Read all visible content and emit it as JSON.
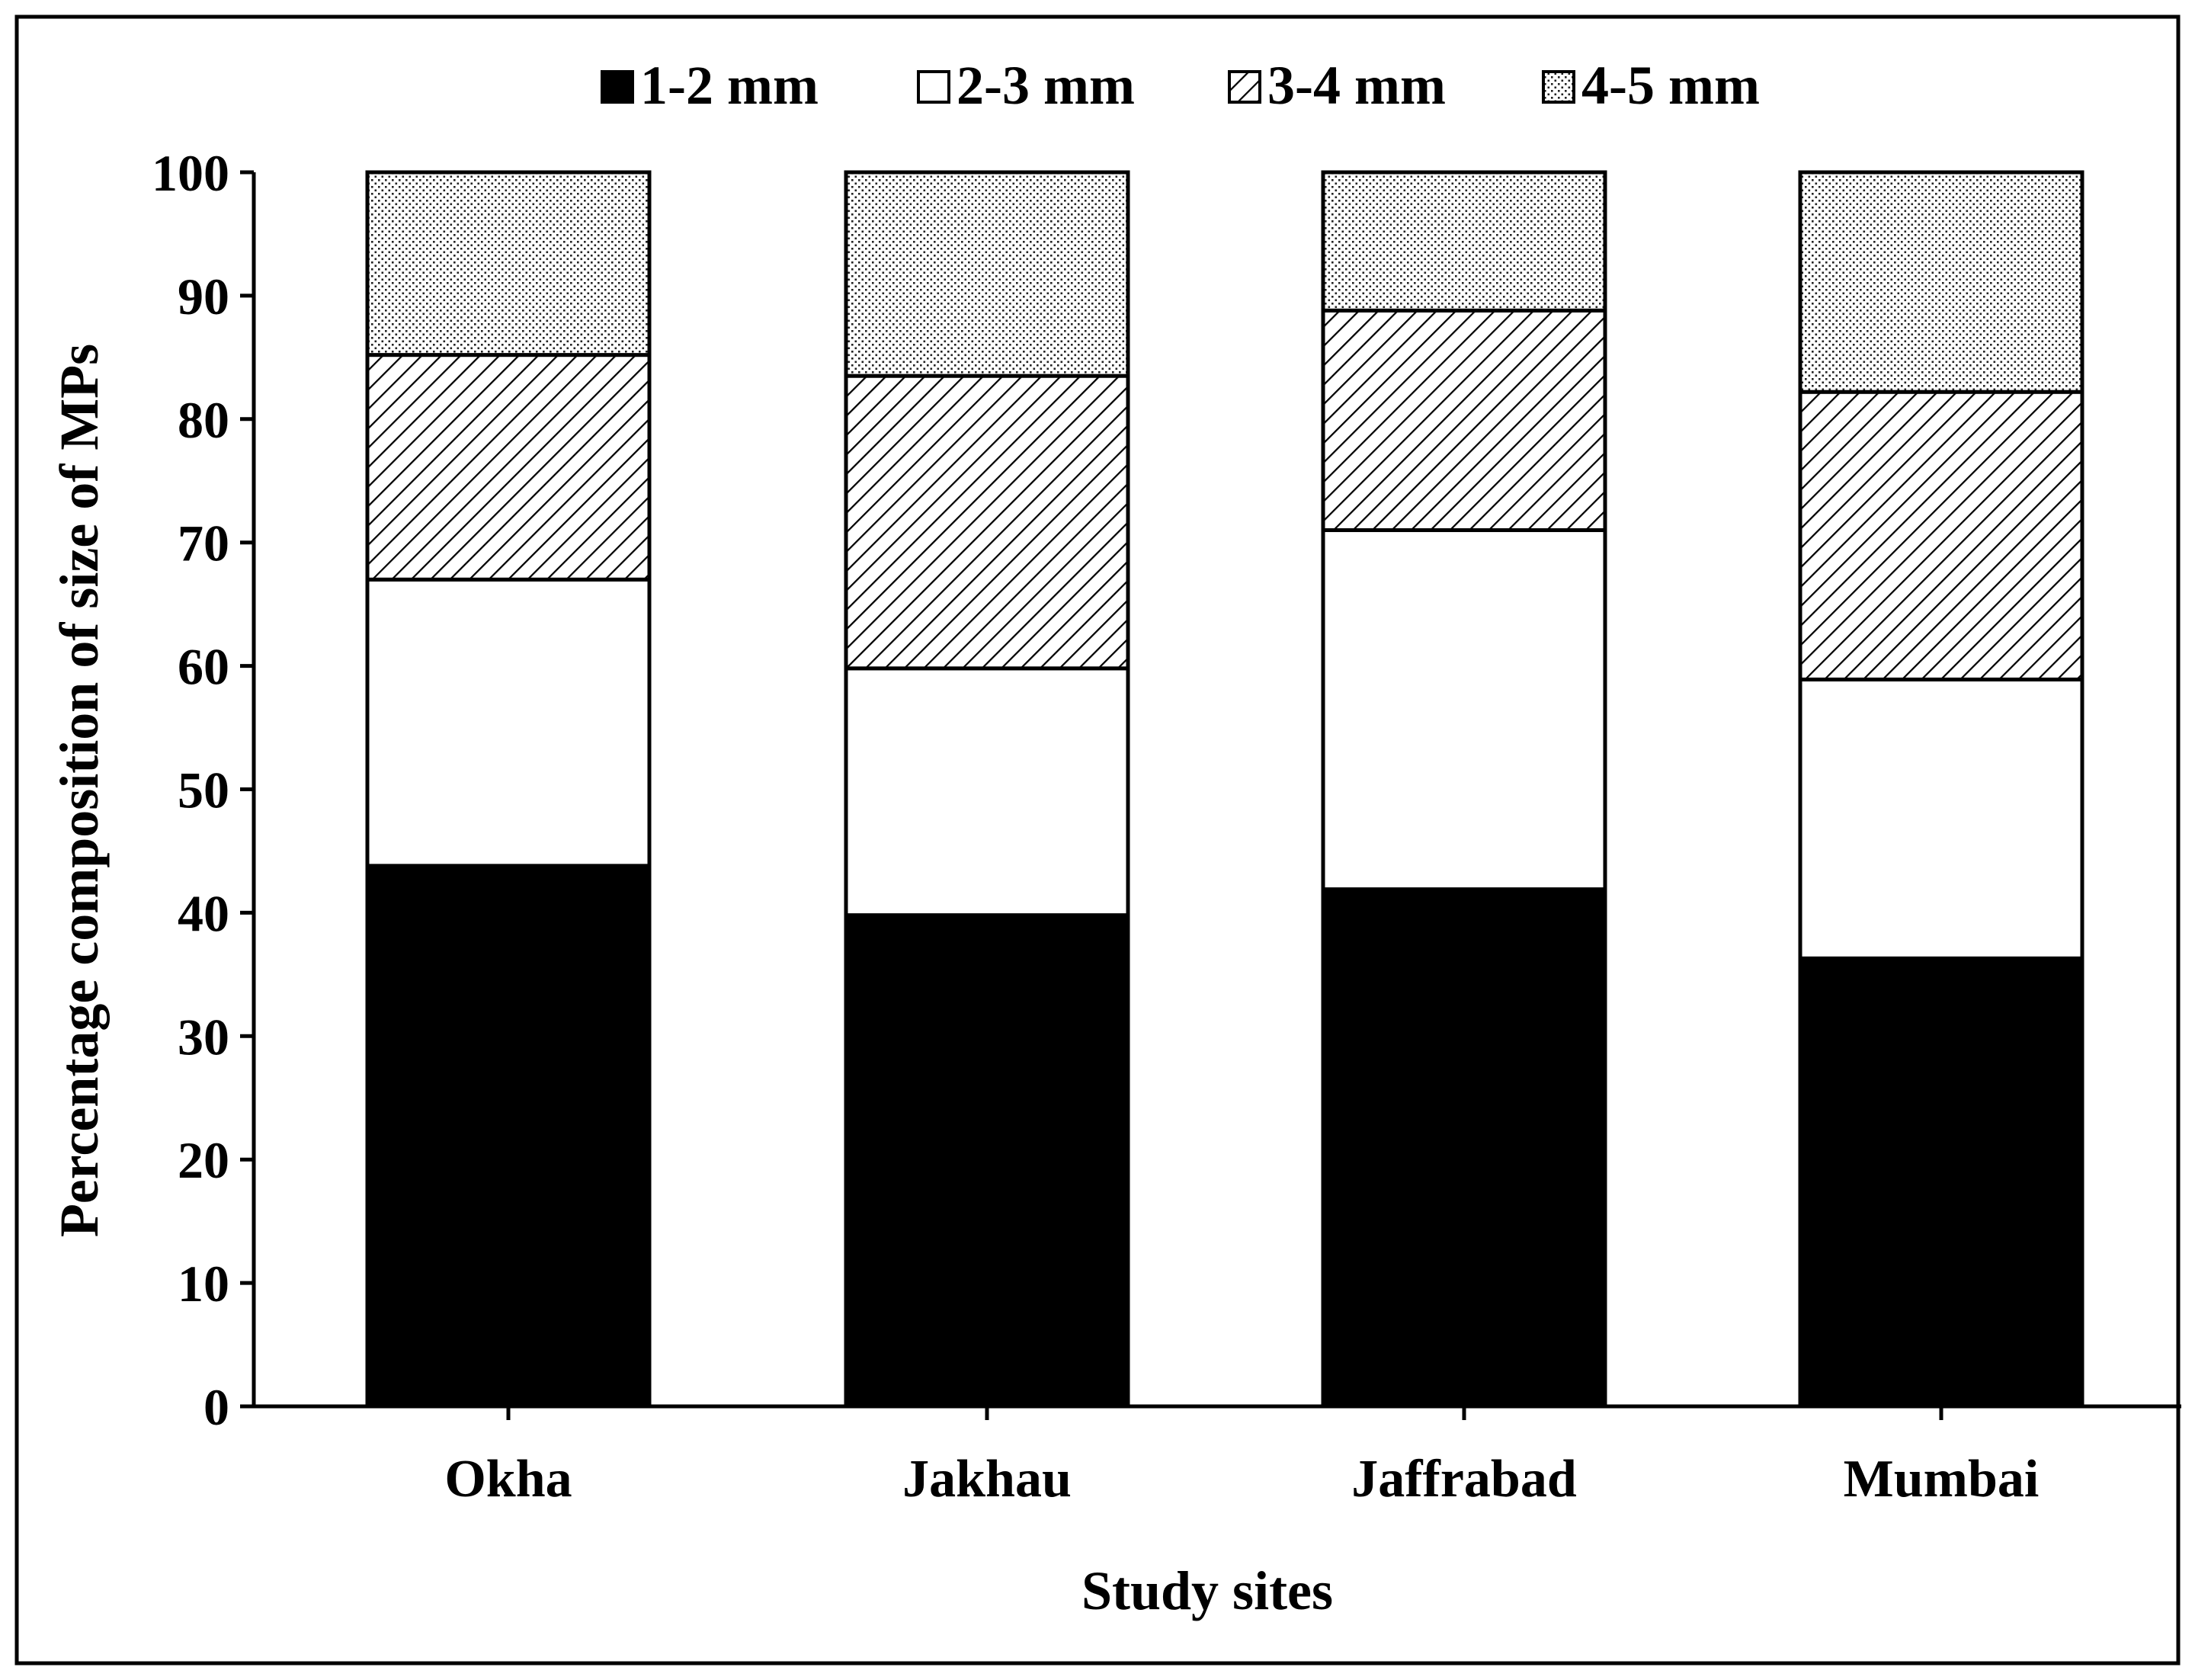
{
  "chart_data": {
    "type": "bar",
    "stacked": true,
    "title": "",
    "xlabel": "Study sites",
    "ylabel": "Percentage composition of size of MPs",
    "categories": [
      "Okha",
      "Jakhau",
      "Jaffrabad",
      "Mumbai"
    ],
    "ylim": [
      0,
      100
    ],
    "yticks": [
      "0",
      "10",
      "20",
      "30",
      "40",
      "50",
      "60",
      "70",
      "80",
      "90",
      "100"
    ],
    "legend_position": "top",
    "grid": false,
    "series": [
      {
        "name": "1-2 mm",
        "pattern": "solid-black",
        "values": [
          43.8,
          39.8,
          41.9,
          36.3
        ]
      },
      {
        "name": "2-3 mm",
        "pattern": "white",
        "values": [
          23.2,
          20.0,
          29.1,
          22.6
        ]
      },
      {
        "name": "3-4 mm",
        "pattern": "diagonal-hatch",
        "values": [
          18.2,
          23.7,
          17.8,
          23.3
        ]
      },
      {
        "name": "4-5 mm",
        "pattern": "dotted",
        "values": [
          14.8,
          16.5,
          11.2,
          17.8
        ]
      }
    ]
  },
  "colors": {
    "ink": "#000000",
    "paper": "#ffffff"
  }
}
